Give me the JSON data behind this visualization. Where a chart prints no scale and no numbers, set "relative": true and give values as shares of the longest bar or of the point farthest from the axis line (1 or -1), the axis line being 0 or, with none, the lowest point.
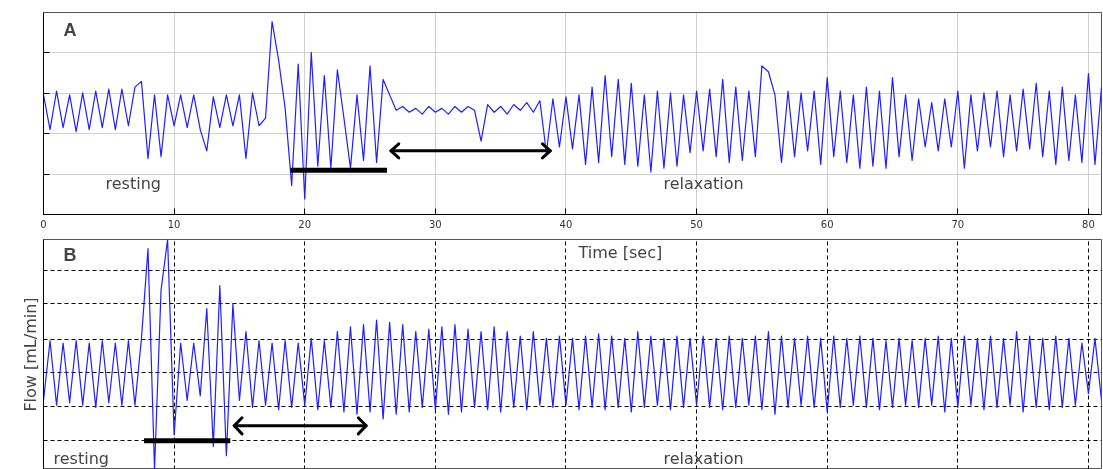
{
  "chart_data": [
    {
      "type": "line",
      "relative": true,
      "ylabel": "Flow [mL/min]",
      "xlabel": "Time [sec]",
      "xlim": [
        0,
        81
      ],
      "xticks": [
        0,
        10,
        20,
        30,
        40,
        50,
        60,
        70,
        80
      ],
      "grid": true,
      "line_style": "solid",
      "annotations": [
        "A",
        "resting",
        "relaxation"
      ],
      "x": [
        0,
        0.5,
        1,
        1.5,
        2,
        2.5,
        3,
        3.5,
        4,
        4.5,
        5,
        5.5,
        6,
        6.5,
        7,
        7.5,
        8,
        8.5,
        9,
        9.5,
        10,
        10.5,
        11,
        11.5,
        12,
        12.5,
        13,
        13.5,
        14,
        14.5,
        15,
        15.5,
        16,
        16.5,
        17,
        17.5,
        18,
        18.5,
        19,
        19.5,
        20,
        20.5,
        21,
        21.5,
        22,
        22.5,
        23,
        23.5,
        24,
        24.5,
        25,
        25.5,
        26,
        26.5,
        27,
        27.5,
        28,
        28.5,
        29,
        29.5,
        30,
        30.5,
        31,
        31.5,
        32,
        32.5,
        33,
        33.5,
        34,
        34.5,
        35,
        35.5,
        36,
        36.5,
        37,
        37.5,
        38,
        38.5,
        39,
        39.5,
        40,
        40.5,
        41,
        41.5,
        42,
        42.5,
        43,
        43.5,
        44,
        44.5,
        45,
        45.5,
        46,
        46.5,
        47,
        47.5,
        48,
        48.5,
        49,
        49.5,
        50,
        50.5,
        51,
        51.5,
        52,
        52.5,
        53,
        53.5,
        54,
        54.5,
        55,
        55.5,
        56,
        56.5,
        57,
        57.5,
        58,
        58.5,
        59,
        59.5,
        60,
        60.5,
        61,
        61.5,
        62,
        62.5,
        63,
        63.5,
        64,
        64.5,
        65,
        65.5,
        66,
        66.5,
        67,
        67.5,
        68,
        68.5,
        69,
        69.5,
        70,
        70.5,
        71,
        71.5,
        72,
        72.5,
        73,
        73.5,
        74,
        74.5,
        75,
        75.5,
        76,
        76.5,
        77,
        77.5,
        78,
        78.5,
        79,
        79.5,
        80,
        80.5,
        81
      ],
      "series": [
        {
          "color": "#1f1fff",
          "values": [
            0.62,
            0.44,
            0.64,
            0.45,
            0.62,
            0.43,
            0.63,
            0.44,
            0.64,
            0.45,
            0.65,
            0.44,
            0.65,
            0.46,
            0.66,
            0.69,
            0.29,
            0.62,
            0.3,
            0.62,
            0.46,
            0.62,
            0.45,
            0.62,
            0.44,
            0.33,
            0.61,
            0.45,
            0.62,
            0.46,
            0.62,
            0.29,
            0.63,
            0.46,
            0.5,
            1.0,
            0.8,
            0.55,
            0.15,
            0.78,
            0.08,
            0.84,
            0.25,
            0.72,
            0.24,
            0.75,
            0.5,
            0.24,
            0.62,
            0.28,
            0.77,
            0.27,
            0.7,
            0.62,
            0.54,
            0.56,
            0.53,
            0.55,
            0.52,
            0.56,
            0.53,
            0.55,
            0.52,
            0.56,
            0.53,
            0.56,
            0.54,
            0.38,
            0.57,
            0.53,
            0.56,
            0.52,
            0.57,
            0.54,
            0.58,
            0.53,
            0.59,
            0.32,
            0.6,
            0.35,
            0.61,
            0.34,
            0.62,
            0.26,
            0.66,
            0.27,
            0.72,
            0.3,
            0.7,
            0.26,
            0.68,
            0.25,
            0.62,
            0.22,
            0.64,
            0.24,
            0.63,
            0.25,
            0.62,
            0.32,
            0.64,
            0.33,
            0.65,
            0.3,
            0.7,
            0.27,
            0.66,
            0.28,
            0.64,
            0.3,
            0.77,
            0.74,
            0.62,
            0.27,
            0.64,
            0.3,
            0.63,
            0.33,
            0.64,
            0.26,
            0.71,
            0.3,
            0.64,
            0.27,
            0.62,
            0.24,
            0.66,
            0.25,
            0.64,
            0.24,
            0.71,
            0.3,
            0.62,
            0.28,
            0.6,
            0.35,
            0.58,
            0.33,
            0.6,
            0.35,
            0.64,
            0.24,
            0.62,
            0.33,
            0.63,
            0.35,
            0.64,
            0.3,
            0.62,
            0.33,
            0.65,
            0.34,
            0.68,
            0.3,
            0.64,
            0.26,
            0.66,
            0.28,
            0.62,
            0.27,
            0.73,
            0.26,
            0.66
          ]
        },
        {
          "color": "#000000",
          "x": [
            18.9,
            26.3
          ],
          "values": [
            0.23,
            0.23
          ]
        },
        {
          "color": "#000000",
          "marker": "cross",
          "x": [
            26.6,
            38.8
          ],
          "values": [
            0.33,
            0.33
          ]
        }
      ]
    },
    {
      "type": "line",
      "relative": true,
      "xlim": [
        0,
        81
      ],
      "xticks": [
        0,
        10,
        20,
        30,
        40,
        50,
        60,
        70,
        80
      ],
      "tick_labels": false,
      "grid": true,
      "line_style": "solid",
      "annotations": [
        "B",
        "resting",
        "relaxation"
      ],
      "x": [
        0,
        0.5,
        1,
        1.5,
        2,
        2.5,
        3,
        3.5,
        4,
        4.5,
        5,
        5.5,
        6,
        6.5,
        7,
        7.5,
        8,
        8.5,
        9,
        9.5,
        10,
        10.5,
        11,
        11.5,
        12,
        12.5,
        13,
        13.5,
        14,
        14.5,
        15,
        15.5,
        16,
        16.5,
        17,
        17.5,
        18,
        18.5,
        19,
        19.5,
        20,
        20.5,
        21,
        21.5,
        22,
        22.5,
        23,
        23.5,
        24,
        24.5,
        25,
        25.5,
        26,
        26.5,
        27,
        27.5,
        28,
        28.5,
        29,
        29.5,
        30,
        30.5,
        31,
        31.5,
        32,
        32.5,
        33,
        33.5,
        34,
        34.5,
        35,
        35.5,
        36,
        36.5,
        37,
        37.5,
        38,
        38.5,
        39,
        39.5,
        40,
        40.5,
        41,
        41.5,
        42,
        42.5,
        43,
        43.5,
        44,
        44.5,
        45,
        45.5,
        46,
        46.5,
        47,
        47.5,
        48,
        48.5,
        49,
        49.5,
        50,
        50.5,
        51,
        51.5,
        52,
        52.5,
        53,
        53.5,
        54,
        54.5,
        55,
        55.5,
        56,
        56.5,
        57,
        57.5,
        58,
        58.5,
        59,
        59.5,
        60,
        60.5,
        61,
        61.5,
        62,
        62.5,
        63,
        63.5,
        64,
        64.5,
        65,
        65.5,
        66,
        66.5,
        67,
        67.5,
        68,
        68.5,
        69,
        69.5,
        70,
        70.5,
        71,
        71.5,
        72,
        72.5,
        73,
        73.5,
        74,
        74.5,
        75,
        75.5,
        76,
        76.5,
        77,
        77.5,
        78,
        78.5,
        79,
        79.5,
        80,
        80.5,
        81
      ],
      "series": [
        {
          "color": "#1f1fff",
          "values": [
            0.3,
            0.56,
            0.28,
            0.55,
            0.29,
            0.56,
            0.28,
            0.55,
            0.27,
            0.56,
            0.29,
            0.55,
            0.28,
            0.56,
            0.28,
            0.57,
            0.96,
            0.0,
            0.78,
            1.0,
            0.15,
            0.55,
            0.3,
            0.55,
            0.32,
            0.7,
            0.1,
            0.8,
            0.06,
            0.72,
            0.3,
            0.6,
            0.27,
            0.56,
            0.28,
            0.55,
            0.26,
            0.56,
            0.27,
            0.55,
            0.28,
            0.57,
            0.26,
            0.56,
            0.27,
            0.6,
            0.25,
            0.62,
            0.24,
            0.63,
            0.25,
            0.65,
            0.22,
            0.64,
            0.24,
            0.63,
            0.25,
            0.6,
            0.27,
            0.61,
            0.26,
            0.62,
            0.24,
            0.63,
            0.25,
            0.61,
            0.27,
            0.6,
            0.26,
            0.62,
            0.25,
            0.6,
            0.27,
            0.58,
            0.26,
            0.6,
            0.28,
            0.57,
            0.27,
            0.58,
            0.28,
            0.57,
            0.26,
            0.58,
            0.27,
            0.59,
            0.26,
            0.58,
            0.27,
            0.57,
            0.25,
            0.6,
            0.27,
            0.58,
            0.28,
            0.57,
            0.26,
            0.58,
            0.27,
            0.57,
            0.28,
            0.58,
            0.27,
            0.57,
            0.26,
            0.58,
            0.27,
            0.57,
            0.28,
            0.58,
            0.26,
            0.6,
            0.24,
            0.58,
            0.27,
            0.57,
            0.28,
            0.58,
            0.27,
            0.57,
            0.25,
            0.58,
            0.27,
            0.57,
            0.28,
            0.58,
            0.27,
            0.57,
            0.26,
            0.56,
            0.27,
            0.57,
            0.28,
            0.56,
            0.27,
            0.57,
            0.28,
            0.58,
            0.25,
            0.57,
            0.27,
            0.58,
            0.28,
            0.57,
            0.26,
            0.58,
            0.27,
            0.57,
            0.28,
            0.6,
            0.25,
            0.58,
            0.27,
            0.57,
            0.26,
            0.58,
            0.27,
            0.57,
            0.28,
            0.55,
            0.33,
            0.57,
            0.3
          ]
        },
        {
          "color": "#000000",
          "x": [
            7.7,
            14.3
          ],
          "values": [
            0.125,
            0.125
          ]
        },
        {
          "color": "#000000",
          "marker": "cross",
          "x": [
            14.6,
            24.7
          ],
          "values": [
            0.19,
            0.19
          ]
        }
      ]
    }
  ]
}
